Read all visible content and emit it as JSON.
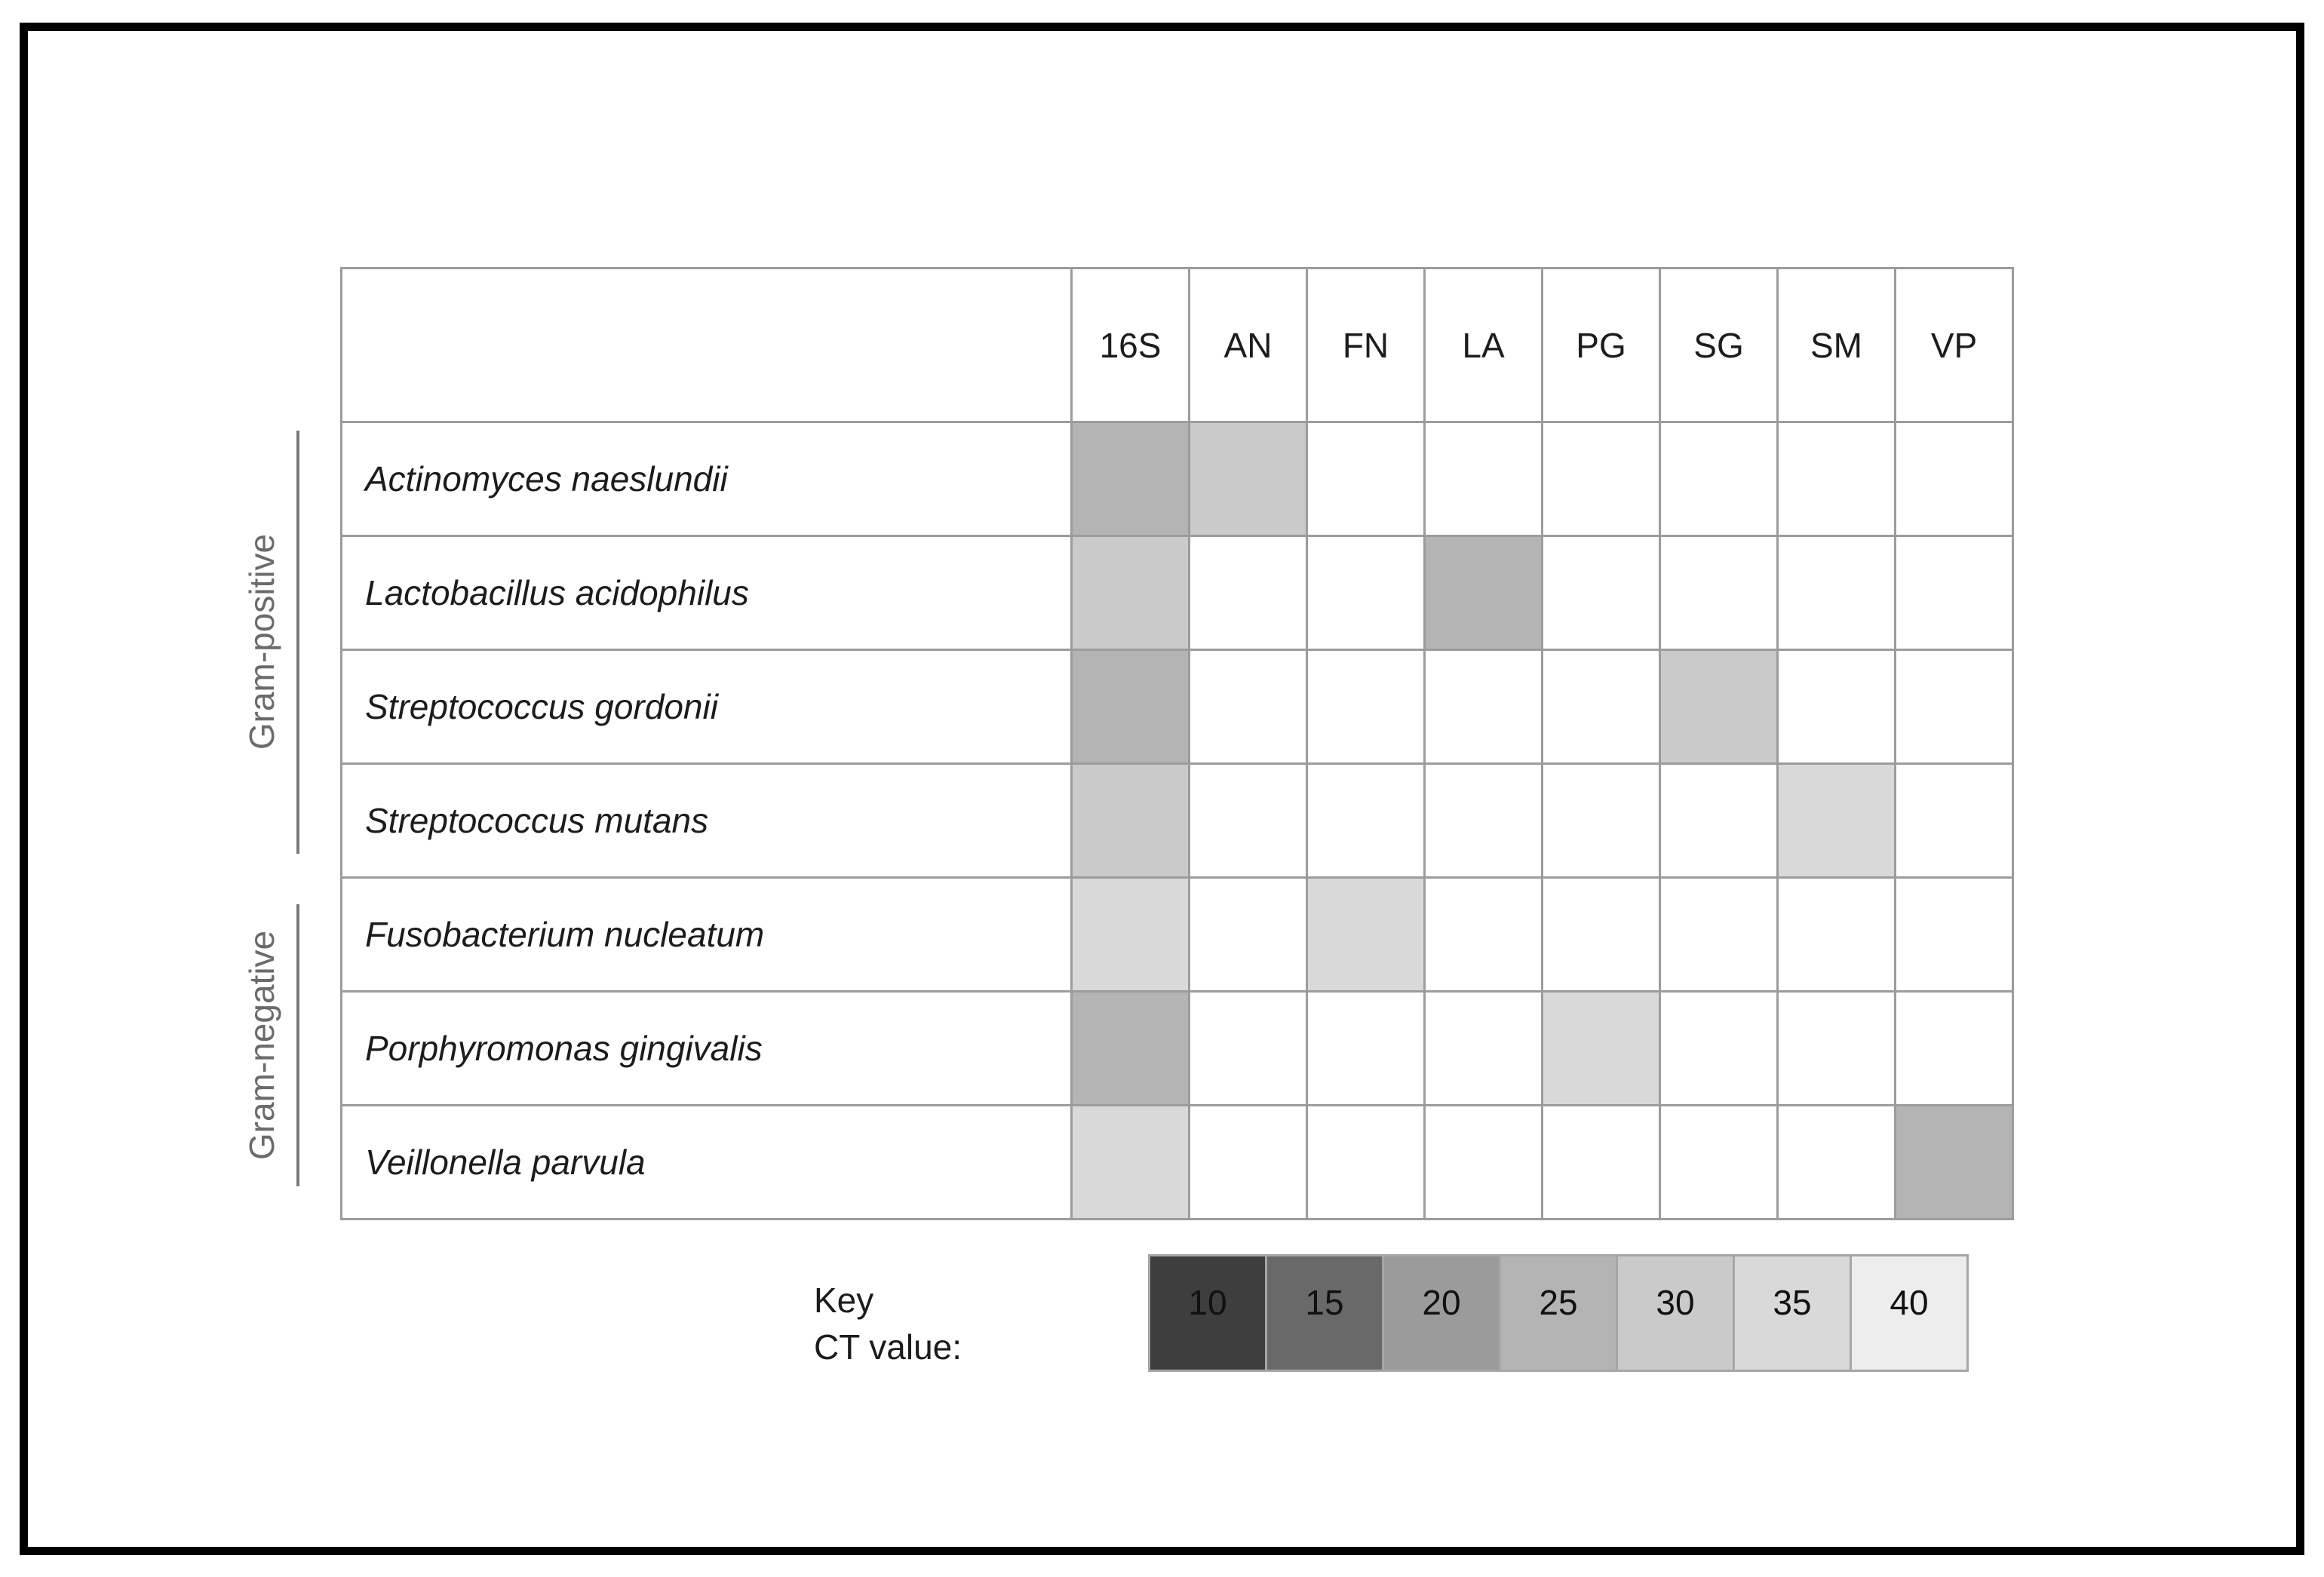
{
  "figure": {
    "columns": [
      "16S",
      "AN",
      "FN",
      "LA",
      "PG",
      "SG",
      "SM",
      "VP"
    ],
    "rows": [
      {
        "species": "Actinomyces naeslundii",
        "group": "Gram-positive",
        "values": [
          25,
          30,
          null,
          null,
          null,
          null,
          null,
          null
        ]
      },
      {
        "species": "Lactobacillus acidophilus",
        "group": "Gram-positive",
        "values": [
          30,
          null,
          null,
          25,
          null,
          null,
          null,
          null
        ]
      },
      {
        "species": "Streptococcus gordonii",
        "group": "Gram-positive",
        "values": [
          25,
          null,
          null,
          null,
          null,
          30,
          null,
          null
        ]
      },
      {
        "species": "Streptococcus mutans",
        "group": "Gram-positive",
        "values": [
          30,
          null,
          null,
          null,
          null,
          null,
          35,
          null
        ]
      },
      {
        "species": "Fusobacterium nucleatum",
        "group": "Gram-negative",
        "values": [
          35,
          null,
          35,
          null,
          null,
          null,
          null,
          null
        ]
      },
      {
        "species": "Porphyromonas gingivalis",
        "group": "Gram-negative",
        "values": [
          25,
          null,
          null,
          null,
          35,
          null,
          null,
          null
        ]
      },
      {
        "species": "Veillonella parvula",
        "group": "Gram-negative",
        "values": [
          35,
          null,
          null,
          null,
          null,
          null,
          null,
          25
        ]
      }
    ],
    "groups": [
      {
        "label": "Gram-positive"
      },
      {
        "label": "Gram-negative"
      }
    ],
    "key": {
      "title": "Key",
      "subtitle": "CT value:",
      "values": [
        10,
        15,
        20,
        25,
        30,
        35,
        40
      ]
    },
    "palette": {
      "10": "#3e3e3e",
      "15": "#696969",
      "20": "#9b9b9b",
      "25": "#b4b4b4",
      "30": "#cacaca",
      "35": "#d9d9d9",
      "40": "#ededed",
      "empty": "#ffffff"
    },
    "colors": {
      "grid_line": "#9c9c9c",
      "frame_border": "#000000",
      "group_label_text": "#6b6b6b",
      "bracket_line": "#7a7a7a",
      "table_text": "#1c1c1c"
    }
  },
  "chart_data": {
    "type": "heatmap",
    "title": "",
    "x_labels": [
      "16S",
      "AN",
      "FN",
      "LA",
      "PG",
      "SG",
      "SM",
      "VP"
    ],
    "y_labels": [
      "Actinomyces naeslundii",
      "Lactobacillus acidophilus",
      "Streptococcus gordonii",
      "Streptococcus mutans",
      "Fusobacterium nucleatum",
      "Porphyromonas gingivalis",
      "Veillonella parvula"
    ],
    "y_groups": [
      {
        "label": "Gram-positive",
        "row_start": 0,
        "row_end": 3
      },
      {
        "label": "Gram-negative",
        "row_start": 4,
        "row_end": 6
      }
    ],
    "values": [
      [
        25,
        30,
        null,
        null,
        null,
        null,
        null,
        null
      ],
      [
        30,
        null,
        null,
        25,
        null,
        null,
        null,
        null
      ],
      [
        25,
        null,
        null,
        null,
        null,
        30,
        null,
        null
      ],
      [
        30,
        null,
        null,
        null,
        null,
        null,
        35,
        null
      ],
      [
        35,
        null,
        35,
        null,
        null,
        null,
        null,
        null
      ],
      [
        25,
        null,
        null,
        null,
        35,
        null,
        null,
        null
      ],
      [
        35,
        null,
        null,
        null,
        null,
        null,
        null,
        25
      ]
    ],
    "legend": {
      "title": "Key CT value:",
      "ticks": [
        10,
        15,
        20,
        25,
        30,
        35,
        40
      ],
      "scale": "dark-to-light (low CT = dark gray, high CT = light gray)",
      "position": "bottom"
    },
    "grid": true
  }
}
